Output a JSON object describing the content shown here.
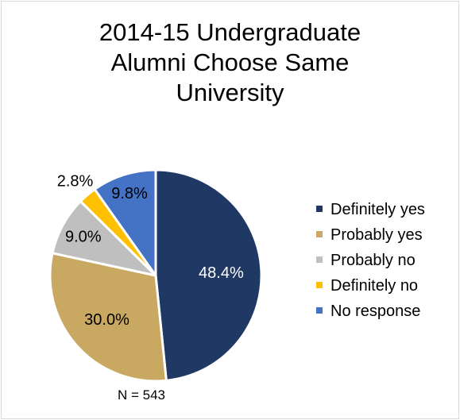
{
  "chart_data": {
    "type": "pie",
    "title_lines": [
      "2014-15 Undergraduate",
      "Alumni Choose Same",
      "University"
    ],
    "title": "2014-15 Undergraduate Alumni Choose Same University",
    "categories": [
      "Definitely yes",
      "Probably yes",
      "Probably no",
      "Definitely no",
      "No response"
    ],
    "values": [
      48.4,
      30.0,
      9.0,
      2.8,
      9.8
    ],
    "data_labels": [
      "48.4%",
      "30.0%",
      "9.0%",
      "2.8%",
      "9.8%"
    ],
    "colors": [
      "#1f3864",
      "#c9a961",
      "#bfbfbf",
      "#ffc000",
      "#4472c4"
    ],
    "label_colors": [
      "#ffffff",
      "#000000",
      "#000000",
      "#000000",
      "#000000"
    ],
    "legend_position": "right",
    "footnote": "N = 543"
  }
}
